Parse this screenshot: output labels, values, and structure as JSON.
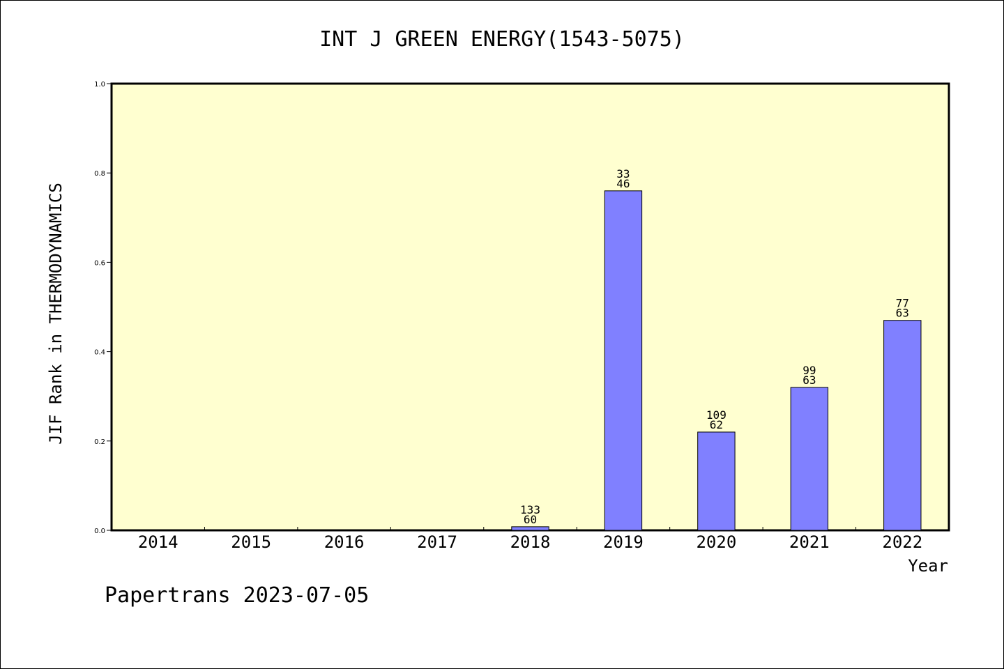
{
  "chart_data": {
    "type": "bar",
    "title": "INT J GREEN ENERGY(1543-5075)",
    "xlabel": "Year",
    "ylabel": "JIF Rank in THERMODYNAMICS",
    "categories": [
      "2014",
      "2015",
      "2016",
      "2017",
      "2018",
      "2019",
      "2020",
      "2021",
      "2022"
    ],
    "values": [
      null,
      null,
      null,
      null,
      0.008,
      0.76,
      0.22,
      0.32,
      0.47
    ],
    "bar_labels": [
      null,
      null,
      null,
      null,
      [
        "133",
        "60"
      ],
      [
        "33",
        "46"
      ],
      [
        "109",
        "62"
      ],
      [
        "99",
        "63"
      ],
      [
        "77",
        "63"
      ]
    ],
    "ylim": [
      0.0,
      1.0
    ],
    "yticks": [
      "0.0",
      "0.2",
      "0.4",
      "0.6",
      "0.8",
      "1.0"
    ],
    "grid": false,
    "colors": {
      "plot_background": "#ffffd0",
      "bar_fill": "#8080ff",
      "bar_stroke": "#000000"
    }
  },
  "footer": "Papertrans 2023-07-05"
}
